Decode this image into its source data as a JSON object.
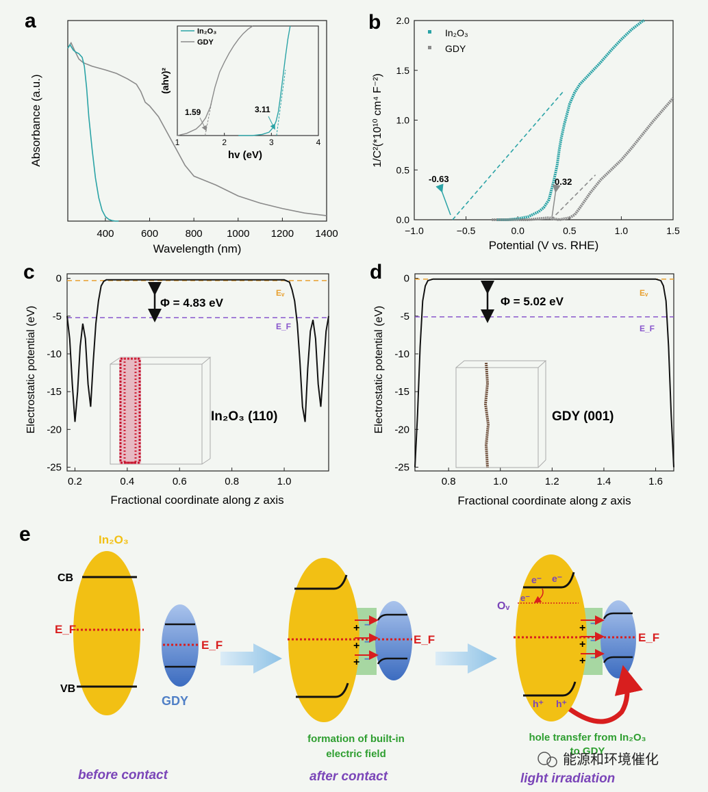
{
  "colors": {
    "teal": "#2aa3a6",
    "gray": "#8a8a8a",
    "black": "#111111",
    "orange": "#e8a030",
    "purple": "#8855cc",
    "yellow": "#f2c014",
    "blue": "#4f7fc6",
    "red": "#d81e1e",
    "green": "#2e9e30",
    "purple_text": "#7a45b8",
    "arrow": "#9fc8e6"
  },
  "panel_labels": {
    "a": "a",
    "b": "b",
    "c": "c",
    "d": "d",
    "e": "e"
  },
  "chart_data": [
    {
      "panel": "a",
      "type": "line",
      "xlabel": "Wavelength (nm)",
      "ylabel": "Absorbance (a.u.)",
      "xlim": [
        230,
        1400
      ],
      "ylim": [
        0,
        1.0
      ],
      "xticks": [
        400,
        600,
        800,
        1000,
        1200,
        1400
      ],
      "xtick_labels": [
        "400",
        "600",
        "800",
        "1000",
        "1200",
        "1400"
      ],
      "series": [
        {
          "name": "In2O3",
          "x": [
            230,
            240,
            255,
            265,
            280,
            295,
            305,
            315,
            325,
            340,
            355,
            370,
            385,
            400,
            415,
            430,
            445,
            460
          ],
          "y": [
            0.96,
            0.98,
            0.95,
            0.94,
            0.93,
            0.91,
            0.86,
            0.74,
            0.58,
            0.4,
            0.24,
            0.13,
            0.06,
            0.025,
            0.01,
            0.003,
            0.0,
            0.0
          ]
        },
        {
          "name": "GDY",
          "x": [
            230,
            245,
            260,
            280,
            300,
            340,
            400,
            450,
            500,
            540,
            560,
            580,
            600,
            640,
            680,
            720,
            760,
            800,
            840,
            900,
            1000,
            1100,
            1200,
            1300,
            1400
          ],
          "y": [
            0.96,
            0.99,
            0.95,
            0.9,
            0.88,
            0.86,
            0.84,
            0.82,
            0.79,
            0.76,
            0.72,
            0.66,
            0.64,
            0.58,
            0.49,
            0.4,
            0.31,
            0.25,
            0.23,
            0.2,
            0.14,
            0.1,
            0.07,
            0.045,
            0.03
          ]
        }
      ],
      "inset": {
        "xlabel": "hv (eV)",
        "ylabel": "(ahv)²",
        "xlim": [
          1,
          4
        ],
        "ylim": [
          0,
          1
        ],
        "xticks": [
          1,
          2,
          3,
          4
        ],
        "xtick_labels": [
          "1",
          "2",
          "3",
          "4"
        ],
        "legend": [
          "In₂O₃",
          "GDY"
        ],
        "annotations": [
          {
            "text": "1.59",
            "x": 1.59
          },
          {
            "text": "3.11",
            "x": 3.11
          }
        ],
        "series": [
          {
            "name": "GDY",
            "x": [
              1.0,
              1.2,
              1.4,
              1.5,
              1.6,
              1.7,
              1.8,
              1.9,
              2.0,
              2.1,
              2.2,
              2.3,
              2.4,
              2.5,
              2.6
            ],
            "y": [
              0.0,
              0.02,
              0.06,
              0.1,
              0.16,
              0.26,
              0.44,
              0.58,
              0.67,
              0.75,
              0.82,
              0.88,
              0.93,
              0.97,
              1.0
            ]
          },
          {
            "name": "In2O3",
            "x": [
              2.3,
              2.6,
              2.8,
              2.95,
              3.05,
              3.1,
              3.15,
              3.2,
              3.25,
              3.3,
              3.35,
              3.4
            ],
            "y": [
              0.0,
              0.0,
              0.01,
              0.03,
              0.08,
              0.13,
              0.22,
              0.38,
              0.55,
              0.72,
              0.88,
              1.0
            ]
          }
        ]
      }
    },
    {
      "panel": "b",
      "type": "scatter",
      "xlabel": "Potential (V vs. RHE)",
      "ylabel": "1/C²(*10¹⁰ cm⁴ F⁻²)",
      "xlim": [
        -1.0,
        1.5
      ],
      "ylim": [
        0.0,
        2.0
      ],
      "xticks": [
        -1.0,
        -0.5,
        0.0,
        0.5,
        1.0,
        1.5
      ],
      "xtick_labels": [
        "−1.0",
        "−0.5",
        "0.0",
        "0.5",
        "1.0",
        "1.5"
      ],
      "yticks": [
        0.0,
        0.5,
        1.0,
        1.5,
        2.0
      ],
      "ytick_labels": [
        "0.0",
        "0.5",
        "1.0",
        "1.5",
        "2.0"
      ],
      "legend": [
        "In₂O₃",
        "GDY"
      ],
      "annotations": [
        {
          "text": "-0.63",
          "x": -0.63
        },
        {
          "text": "0.32",
          "x": 0.32
        }
      ],
      "series": [
        {
          "name": "In2O3",
          "x": [
            -0.2,
            -0.1,
            0.0,
            0.1,
            0.2,
            0.25,
            0.3,
            0.32,
            0.35,
            0.38,
            0.4,
            0.42,
            0.45,
            0.48,
            0.5,
            0.55,
            0.6,
            0.7,
            0.8,
            0.9,
            1.0,
            1.1,
            1.2,
            1.22
          ],
          "y": [
            0.0,
            0.0,
            0.01,
            0.03,
            0.08,
            0.12,
            0.2,
            0.28,
            0.4,
            0.55,
            0.7,
            0.82,
            0.96,
            1.08,
            1.16,
            1.28,
            1.36,
            1.47,
            1.58,
            1.7,
            1.81,
            1.91,
            1.99,
            2.0
          ]
        },
        {
          "name": "GDY",
          "x": [
            -0.25,
            -0.1,
            0.0,
            0.1,
            0.2,
            0.3,
            0.4,
            0.45,
            0.5,
            0.55,
            0.6,
            0.7,
            0.8,
            0.9,
            1.0,
            1.1,
            1.2,
            1.3,
            1.4,
            1.5
          ],
          "y": [
            0.0,
            0.0,
            0.0,
            0.0,
            0.01,
            0.02,
            0.0,
            0.01,
            0.02,
            0.05,
            0.12,
            0.27,
            0.4,
            0.5,
            0.6,
            0.72,
            0.85,
            0.98,
            1.1,
            1.22
          ]
        }
      ],
      "fit_lines": [
        {
          "name": "In2O3 fit",
          "x": [
            -0.63,
            0.45
          ],
          "y": [
            0.0,
            1.3
          ]
        },
        {
          "name": "GDY fit",
          "x": [
            0.32,
            0.75
          ],
          "y": [
            0.0,
            0.45
          ]
        }
      ]
    },
    {
      "panel": "c",
      "type": "line",
      "xlabel": "Fractional coordinate along",
      "xlabel_italic": "z",
      "xlabel_end": "axis",
      "ylabel": "Electrostatic potential (eV)",
      "xlim": [
        0.17,
        1.17
      ],
      "ylim": [
        -25.5,
        0.6
      ],
      "xticks": [
        0.2,
        0.4,
        0.6,
        0.8,
        1.0
      ],
      "xtick_labels": [
        "0.2",
        "0.4",
        "0.6",
        "0.8",
        "1.0"
      ],
      "yticks": [
        0,
        -5,
        -10,
        -15,
        -20,
        -25
      ],
      "ytick_labels": [
        "0",
        "-5",
        "-10",
        "-15",
        "-20",
        "-25"
      ],
      "ev_level": -0.3,
      "ef_level": -5.2,
      "ev_label": "Eᵥ",
      "ef_label": "E_F",
      "phi_label": "Φ = 4.83 eV",
      "structure_label": "In₂O₃ (110)",
      "series": [
        {
          "name": "potential",
          "x": [
            0.17,
            0.18,
            0.19,
            0.2,
            0.21,
            0.22,
            0.23,
            0.24,
            0.25,
            0.26,
            0.27,
            0.28,
            0.29,
            0.3,
            0.31,
            0.32,
            0.34,
            0.5,
            0.8,
            1.0,
            1.02,
            1.03,
            1.04,
            1.05,
            1.06,
            1.07,
            1.08,
            1.09,
            1.1,
            1.11,
            1.12,
            1.13,
            1.14,
            1.15,
            1.16,
            1.17
          ],
          "y": [
            -5,
            -8,
            -14,
            -19,
            -15,
            -9,
            -6,
            -8,
            -14,
            -17,
            -11,
            -6,
            -3,
            -1,
            -0.4,
            -0.2,
            -0.2,
            -0.2,
            -0.2,
            -0.2,
            -0.5,
            -1.5,
            -3,
            -6,
            -11,
            -17,
            -19,
            -12,
            -7,
            -5.5,
            -8,
            -14,
            -17,
            -12,
            -7,
            -5
          ]
        }
      ]
    },
    {
      "panel": "d",
      "type": "line",
      "xlabel": "Fractional coordinate along",
      "xlabel_italic": "z",
      "xlabel_end": "axis",
      "ylabel": "Electrostatic potential (eV)",
      "xlim": [
        0.67,
        1.67
      ],
      "ylim": [
        -25.5,
        0.6
      ],
      "xticks": [
        0.8,
        1.0,
        1.2,
        1.4,
        1.6
      ],
      "xtick_labels": [
        "0.8",
        "1.0",
        "1.2",
        "1.4",
        "1.6"
      ],
      "yticks": [
        0,
        -5,
        -10,
        -15,
        -20,
        -25
      ],
      "ytick_labels": [
        "0",
        "-5",
        "-10",
        "-15",
        "-20",
        "-25"
      ],
      "ev_level": -0.1,
      "ef_level": -5.1,
      "ev_label": "Eᵥ",
      "ef_label": "E_F",
      "phi_label": "Φ = 5.02 eV",
      "structure_label": "GDY (001)",
      "series": [
        {
          "name": "potential",
          "x": [
            0.67,
            0.68,
            0.69,
            0.7,
            0.71,
            0.72,
            0.74,
            1.0,
            1.6,
            1.62,
            1.63,
            1.64,
            1.65,
            1.66,
            1.67
          ],
          "y": [
            -25,
            -18,
            -9,
            -3,
            -1,
            -0.3,
            -0.1,
            -0.1,
            -0.1,
            -0.3,
            -1,
            -3,
            -9,
            -18,
            -25
          ]
        }
      ]
    }
  ],
  "schematic": {
    "in2o3_label": "In₂O₃",
    "cb_label": "CB",
    "vb_label": "VB",
    "ef_label": "E_F",
    "ef_label_gdy": "E_F",
    "gdy_label": "GDY",
    "before_label": "before contact",
    "after_label": "after contact",
    "light_label": "light irradiation",
    "builtin_line1": "formation of built-in",
    "builtin_line2": "electric field",
    "hole_line1": "hole transfer from In₂O₃",
    "hole_line2": "to GDY",
    "ov_label": "Oᵥ",
    "electron_label": "e⁻",
    "hole_label": "h⁺",
    "plus": "+",
    "minus": "−",
    "ef_after": "E_F",
    "ef_light": "E_F",
    "watermark": "能源和环境催化"
  }
}
